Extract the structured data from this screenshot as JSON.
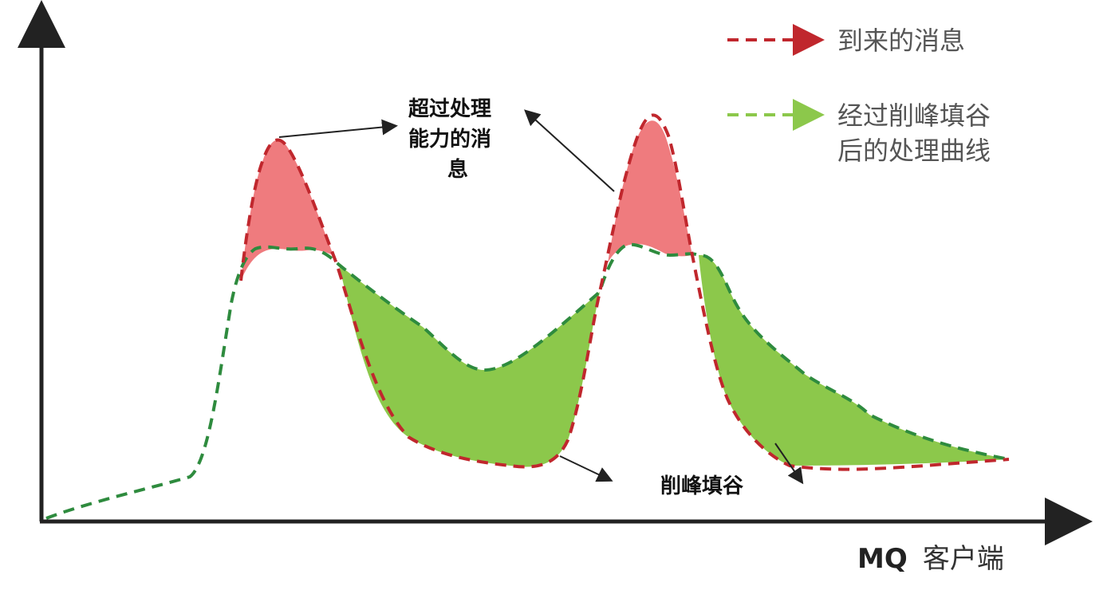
{
  "legend": {
    "arriving": {
      "label": "到来的消息",
      "color": "#c0272d"
    },
    "processed": {
      "line1": "经过削峰填谷",
      "line2": "后的处理曲线",
      "color": "#2e8b3e"
    }
  },
  "annotations": {
    "excess": {
      "line1": "超过处理",
      "line2": "能力的消",
      "line3": "息"
    },
    "shaving": {
      "text": "削峰填谷"
    }
  },
  "x_axis": {
    "prefix": "MQ",
    "suffix": "客户端"
  },
  "colors": {
    "excess_fill": "#ef7b7e",
    "fill_valley": "#8cc84b",
    "arriving_line": "#c0272d",
    "processed_line": "#2e8b3e",
    "axis": "#222222"
  }
}
